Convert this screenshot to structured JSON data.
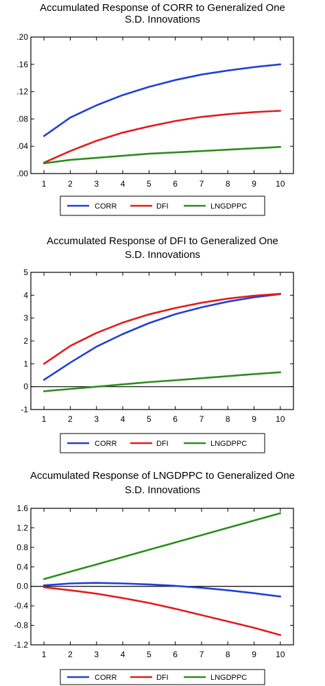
{
  "chart_data": [
    {
      "type": "line",
      "title": [
        "Accumulated Response of CORR to Generalized One",
        "S.D. Innovations"
      ],
      "x": [
        1,
        2,
        3,
        4,
        5,
        6,
        7,
        8,
        9,
        10
      ],
      "x_tick_labels": [
        "1",
        "2",
        "3",
        "4",
        "5",
        "6",
        "7",
        "8",
        "9",
        "10"
      ],
      "ylim": [
        0,
        0.2
      ],
      "y_ticks": [
        0,
        0.04,
        0.08,
        0.12,
        0.16,
        0.2
      ],
      "y_tick_labels": [
        ".00",
        ".04",
        ".08",
        ".12",
        ".16",
        ".20"
      ],
      "zero_line": false,
      "series": [
        {
          "name": "CORR",
          "color": "#1f3fd9",
          "values": [
            0.055,
            0.082,
            0.1,
            0.115,
            0.127,
            0.137,
            0.145,
            0.151,
            0.156,
            0.16
          ]
        },
        {
          "name": "DFI",
          "color": "#e31b1b",
          "values": [
            0.016,
            0.033,
            0.048,
            0.06,
            0.069,
            0.077,
            0.083,
            0.087,
            0.09,
            0.092
          ]
        },
        {
          "name": "LNGDPPC",
          "color": "#2e8b1e",
          "values": [
            0.015,
            0.02,
            0.023,
            0.026,
            0.029,
            0.031,
            0.033,
            0.035,
            0.037,
            0.039
          ]
        }
      ],
      "legend": "bottom"
    },
    {
      "type": "line",
      "title": [
        "Accumulated Response of DFI to Generalized One",
        "S.D. Innovations"
      ],
      "x": [
        1,
        2,
        3,
        4,
        5,
        6,
        7,
        8,
        9,
        10
      ],
      "x_tick_labels": [
        "1",
        "2",
        "3",
        "4",
        "5",
        "6",
        "7",
        "8",
        "9",
        "10"
      ],
      "ylim": [
        -1,
        5
      ],
      "y_ticks": [
        -1,
        0,
        1,
        2,
        3,
        4,
        5
      ],
      "y_tick_labels": [
        "-1",
        "0",
        "1",
        "2",
        "3",
        "4",
        "5"
      ],
      "zero_line": true,
      "series": [
        {
          "name": "CORR",
          "color": "#1f3fd9",
          "values": [
            0.3,
            1.05,
            1.75,
            2.3,
            2.78,
            3.17,
            3.47,
            3.72,
            3.91,
            4.05
          ]
        },
        {
          "name": "DFI",
          "color": "#e31b1b",
          "values": [
            1.0,
            1.78,
            2.35,
            2.8,
            3.16,
            3.44,
            3.67,
            3.85,
            3.98,
            4.06
          ]
        },
        {
          "name": "LNGDPPC",
          "color": "#2e8b1e",
          "values": [
            -0.2,
            -0.1,
            0.0,
            0.1,
            0.2,
            0.28,
            0.37,
            0.46,
            0.55,
            0.63
          ]
        }
      ],
      "legend": "bottom"
    },
    {
      "type": "line",
      "title": [
        "Accumulated Response of LNGDPPC to Generalized One",
        "S.D. Innovations"
      ],
      "x": [
        1,
        2,
        3,
        4,
        5,
        6,
        7,
        8,
        9,
        10
      ],
      "x_tick_labels": [
        "1",
        "2",
        "3",
        "4",
        "5",
        "6",
        "7",
        "8",
        "9",
        "10"
      ],
      "ylim": [
        -1.2,
        1.6
      ],
      "y_ticks": [
        -1.2,
        -0.8,
        -0.4,
        0,
        0.4,
        0.8,
        1.2,
        1.6
      ],
      "y_tick_labels": [
        "-1.2",
        "-0.8",
        "-0.4",
        "0.0",
        "0.4",
        "0.8",
        "1.2",
        "1.6"
      ],
      "zero_line": true,
      "series": [
        {
          "name": "CORR",
          "color": "#1f3fd9",
          "values": [
            0.02,
            0.06,
            0.07,
            0.06,
            0.04,
            0.01,
            -0.03,
            -0.08,
            -0.14,
            -0.21
          ]
        },
        {
          "name": "DFI",
          "color": "#e31b1b",
          "values": [
            -0.02,
            -0.08,
            -0.15,
            -0.24,
            -0.34,
            -0.46,
            -0.59,
            -0.72,
            -0.85,
            -1.0
          ]
        },
        {
          "name": "LNGDPPC",
          "color": "#2e8b1e",
          "values": [
            0.15,
            0.3,
            0.45,
            0.6,
            0.75,
            0.9,
            1.05,
            1.2,
            1.35,
            1.5
          ]
        }
      ],
      "legend": "bottom"
    }
  ]
}
